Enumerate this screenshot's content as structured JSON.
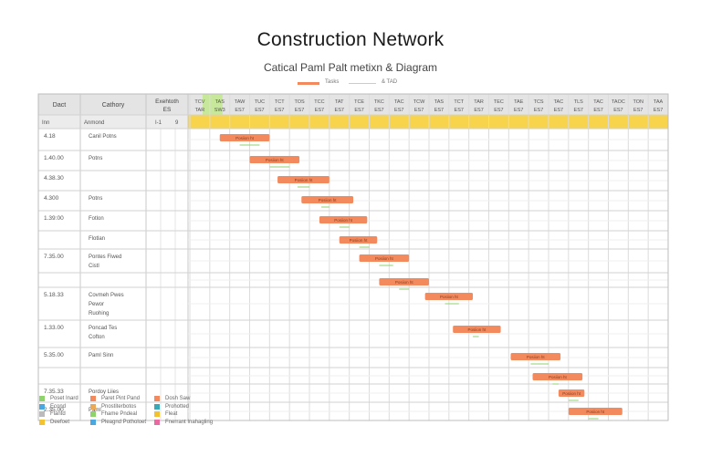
{
  "header": {
    "title": "Construction Network",
    "subtitle": "Catical Paml Palt metixn & Diagram"
  },
  "top_legend": [
    {
      "label": "Tasks",
      "color": "#f28a5e"
    },
    {
      "label": "& TAD",
      "color": "#cccccc"
    }
  ],
  "table_headers": {
    "col1": "Dact",
    "col2": "Cathory",
    "col3": "Exehtoth ES",
    "subrow_col1": "Inn",
    "subrow_col2": "Anmond",
    "subrow_col3a": "I-1",
    "subrow_col3b": "9",
    "period_labels": [
      "TCV TAR",
      "TAS SW3",
      "TAW ES7",
      "TUC ES7",
      "TCT ES7",
      "TOS ES7",
      "TCC ES7",
      "TAT ES7",
      "TCE ES7",
      "TKC ES7",
      "TAC ES7",
      "TCW ES7",
      "TAS ES7",
      "TCT ES7",
      "TAR ES7",
      "TEC ES7",
      "TAE ES7",
      "TCS ES7",
      "TAC ES7",
      "TLS ES7",
      "TAC ES7",
      "TAOC ES7",
      "TON ES7",
      "TAA ES7"
    ]
  },
  "legend_items": [
    {
      "label": "Poset Inard",
      "color": "#8fd36c"
    },
    {
      "label": "Paret Pint Pand",
      "color": "#f28a5e"
    },
    {
      "label": "Dosh Saw",
      "color": "#f28a5e"
    },
    {
      "label": "Econd",
      "color": "#4aa7e0"
    },
    {
      "label": "Pnostiterbotos",
      "color": "#e9a957"
    },
    {
      "label": "Prohotted",
      "color": "#39a9b8"
    },
    {
      "label": "Flantd",
      "color": "#bbbbbb"
    },
    {
      "label": "Fhame Pndeal",
      "color": "#8fd36c"
    },
    {
      "label": "Fleat",
      "color": "#f2c230"
    },
    {
      "label": "Deefoet",
      "color": "#f2c230"
    },
    {
      "label": "Pleagnd Potholoet",
      "color": "#4aa7e0"
    },
    {
      "label": "Fnerrant Inahagling",
      "color": "#e86aa0"
    }
  ],
  "chart_data": {
    "type": "bar",
    "title": "Construction Network",
    "subtitle": "Catical Paml Palt metixn & Diagram",
    "xlabel": "",
    "ylabel": "",
    "xlim": [
      0,
      24
    ],
    "grid": true,
    "tasks": [
      {
        "date": "4.18",
        "category": [
          "Canil Potns"
        ],
        "start": 1.5,
        "end": 4.0,
        "bar_label": "Posiion ht",
        "link_to": 3.5
      },
      {
        "date": "1.40.00",
        "category": [
          "Potns"
        ],
        "start": 3.0,
        "end": 5.5,
        "bar_label": "Posiion ht",
        "link_to": 5.0
      },
      {
        "date": "4.38.30",
        "category": [
          ""
        ],
        "start": 4.4,
        "end": 7.0,
        "bar_label": "Posiion ht",
        "link_to": 6.0
      },
      {
        "date": "4.300",
        "category": [
          "Potns"
        ],
        "start": 5.6,
        "end": 8.2,
        "bar_label": "Posiion ht",
        "link_to": 7.0
      },
      {
        "date": "1.39:00",
        "category": [
          "Fotlon"
        ],
        "start": 6.5,
        "end": 8.9,
        "bar_label": "Posiion ht",
        "link_to": 8.0
      },
      {
        "date": "",
        "category": [
          "Flotlan"
        ],
        "start": 7.5,
        "end": 9.4,
        "bar_label": "Posiion ht",
        "link_to": 9.0
      },
      {
        "date": "7.35.00",
        "category": [
          "Pontes Fiwed",
          "Cistl"
        ],
        "start": 8.5,
        "end": 11.0,
        "bar_label": "Posiion ht",
        "link_to": 10.2
      },
      {
        "date": "",
        "category": [
          ""
        ],
        "start": 9.5,
        "end": 12.0,
        "bar_label": "Posiion ht",
        "link_to": 11.0
      },
      {
        "date": "5.18.33",
        "category": [
          "Covmeh Pwes",
          "Pewor",
          "Ruohing"
        ],
        "start": 11.8,
        "end": 14.2,
        "bar_label": "Posiion ht",
        "link_to": 13.5
      },
      {
        "date": "1.33.00",
        "category": [
          "Poncad Tes",
          "Cofton"
        ],
        "start": 13.2,
        "end": 15.6,
        "bar_label": "Posiion ht",
        "link_to": 14.5
      },
      {
        "date": "5.35.00",
        "category": [
          "Paml Sinn"
        ],
        "start": 16.1,
        "end": 18.6,
        "bar_label": "Posiion ht",
        "link_to": 18.0
      },
      {
        "date": "",
        "category": [
          ""
        ],
        "start": 17.2,
        "end": 19.7,
        "bar_label": "Posiion ht",
        "link_to": 18.5
      },
      {
        "date": "7.35.33",
        "category": [
          "Pordoy Liies"
        ],
        "start": 18.5,
        "end": 19.8,
        "bar_label": "Posiion ht",
        "link_to": 19.0
      },
      {
        "date": "2.35.00",
        "category": [
          "Paml"
        ],
        "start": 19.0,
        "end": 21.7,
        "bar_label": "Posiion ht",
        "link_to": 20.5
      }
    ]
  }
}
